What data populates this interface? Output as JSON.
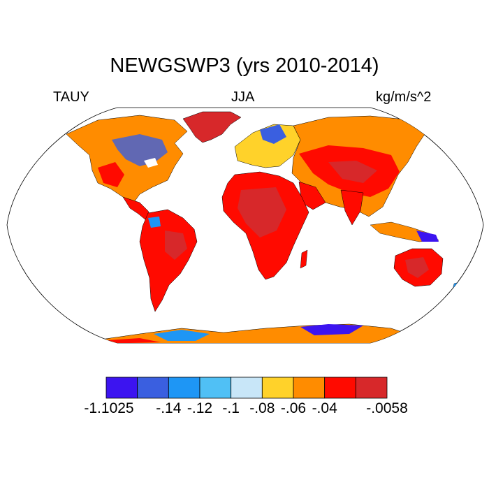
{
  "title": "NEWGSWP3 (yrs 2010-2014)",
  "left_label": "TAUY",
  "center_label": "JJA",
  "right_label": "kg/m/s^2",
  "colors": {
    "ocean": "#ffffff",
    "land_nodata": "#ffffff",
    "outline": "#000000"
  },
  "colorbar": {
    "colors": [
      "#3c14f0",
      "#3a5fe0",
      "#1e96f5",
      "#50c0f5",
      "#c8e6f8",
      "#ffd22a",
      "#ff8c00",
      "#ff0a00",
      "#d7282a"
    ],
    "labels": [
      "-1.1025",
      "-.14",
      "-.12",
      "-.1",
      "-.08",
      "-.06",
      "-.04",
      "-.0058"
    ]
  }
}
